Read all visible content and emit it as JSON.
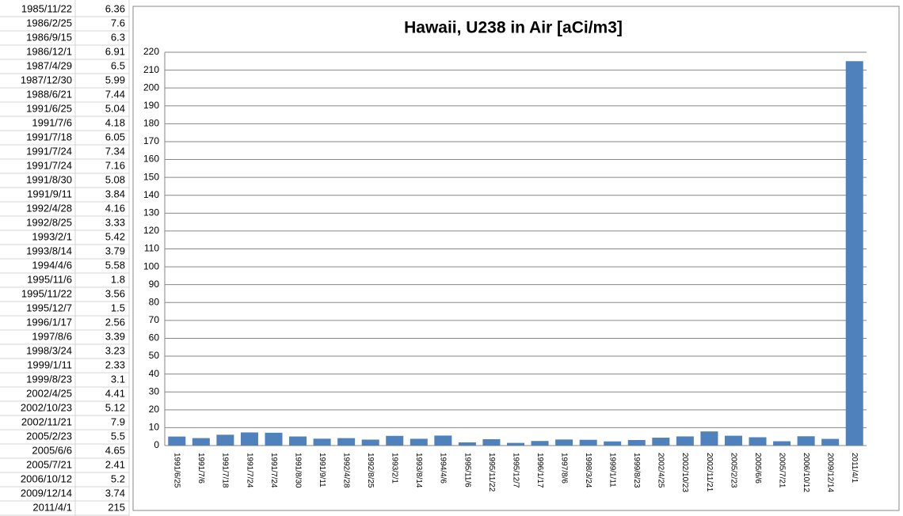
{
  "table": {
    "rows": [
      [
        "1985/11/22",
        6.36
      ],
      [
        "1986/2/25",
        7.6
      ],
      [
        "1986/9/15",
        6.3
      ],
      [
        "1986/12/1",
        6.91
      ],
      [
        "1987/4/29",
        6.5
      ],
      [
        "1987/12/30",
        5.99
      ],
      [
        "1988/6/21",
        7.44
      ],
      [
        "1991/6/25",
        5.04
      ],
      [
        "1991/7/6",
        4.18
      ],
      [
        "1991/7/18",
        6.05
      ],
      [
        "1991/7/24",
        7.34
      ],
      [
        "1991/7/24",
        7.16
      ],
      [
        "1991/8/30",
        5.08
      ],
      [
        "1991/9/11",
        3.84
      ],
      [
        "1992/4/28",
        4.16
      ],
      [
        "1992/8/25",
        3.33
      ],
      [
        "1993/2/1",
        5.42
      ],
      [
        "1993/8/14",
        3.79
      ],
      [
        "1994/4/6",
        5.58
      ],
      [
        "1995/11/6",
        1.8
      ],
      [
        "1995/11/22",
        3.56
      ],
      [
        "1995/12/7",
        1.5
      ],
      [
        "1996/1/17",
        2.56
      ],
      [
        "1997/8/6",
        3.39
      ],
      [
        "1998/3/24",
        3.23
      ],
      [
        "1999/1/11",
        2.33
      ],
      [
        "1999/8/23",
        3.1
      ],
      [
        "2002/4/25",
        4.41
      ],
      [
        "2002/10/23",
        5.12
      ],
      [
        "2002/11/21",
        7.9
      ],
      [
        "2005/2/23",
        5.5
      ],
      [
        "2005/6/6",
        4.65
      ],
      [
        "2005/7/21",
        2.41
      ],
      [
        "2006/10/12",
        5.2
      ],
      [
        "2009/12/14",
        3.74
      ],
      [
        "2011/4/1",
        215
      ]
    ]
  },
  "chart_data": {
    "type": "bar",
    "title": "Hawaii, U238 in Air [aCi/m3]",
    "categories": [
      "1991/6/25",
      "1991/7/6",
      "1991/7/18",
      "1991/7/24",
      "1991/7/24",
      "1991/8/30",
      "1991/9/11",
      "1992/4/28",
      "1992/8/25",
      "1993/2/1",
      "1993/8/14",
      "1994/4/6",
      "1995/11/6",
      "1995/11/22",
      "1995/12/7",
      "1996/1/17",
      "1997/8/6",
      "1998/3/24",
      "1999/1/11",
      "1999/8/23",
      "2002/4/25",
      "2002/10/23",
      "2002/11/21",
      "2005/2/23",
      "2005/6/6",
      "2005/7/21",
      "2006/10/12",
      "2009/12/14",
      "2011/4/1"
    ],
    "values": [
      5.04,
      4.18,
      6.05,
      7.34,
      7.16,
      5.08,
      3.84,
      4.16,
      3.33,
      5.42,
      3.79,
      5.58,
      1.8,
      3.56,
      1.5,
      2.56,
      3.39,
      3.23,
      2.33,
      3.1,
      4.41,
      5.12,
      7.9,
      5.5,
      4.65,
      2.41,
      5.2,
      3.74,
      215
    ],
    "color": "#4f81bd",
    "ylim": [
      0,
      220
    ],
    "yticks": [
      0,
      10,
      20,
      30,
      40,
      50,
      60,
      70,
      80,
      90,
      100,
      110,
      120,
      130,
      140,
      150,
      160,
      170,
      180,
      190,
      200,
      210,
      220
    ],
    "grid": true
  }
}
